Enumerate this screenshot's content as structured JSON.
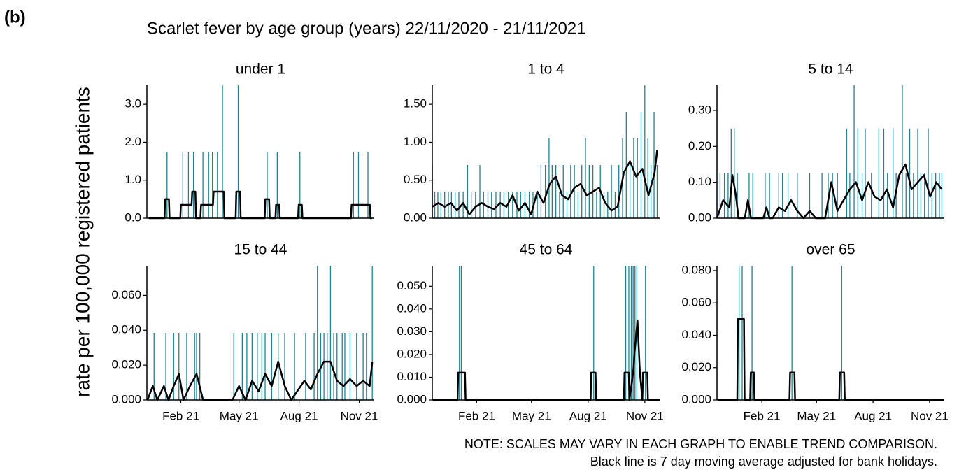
{
  "label": "(b)",
  "title": "Scarlet fever by age group (years) 22/11/2020 - 21/11/2021",
  "y_label": "rate per 100,000 registered patients",
  "notes": [
    "NOTE: SCALES MAY VARY IN EACH GRAPH TO ENABLE TREND COMPARISON.",
    "Black line is 7 day moving average adjusted for bank holidays."
  ],
  "chart_data": [
    {
      "type": "line",
      "title": "under 1",
      "xlim": [
        7,
        368
      ],
      "ylim": [
        0,
        3.5
      ],
      "yticks": [
        {
          "value": 0,
          "label": "0.0"
        },
        {
          "value": 1,
          "label": "1.0"
        },
        {
          "value": 2,
          "label": "2.0"
        },
        {
          "value": 3,
          "label": "3.0"
        }
      ],
      "series": [
        {
          "type": "spike",
          "color": "#1f8394",
          "x": [
            39,
            64,
            73,
            81,
            96,
            105,
            111,
            119,
            127,
            152,
            198,
            214,
            250,
            335,
            343,
            358
          ],
          "values": [
            1.75,
            1.75,
            1.75,
            1.75,
            1.75,
            1.75,
            1.75,
            1.75,
            3.5,
            3.5,
            1.75,
            1.75,
            1.75,
            1.75,
            1.75,
            1.75
          ]
        },
        {
          "type": "line",
          "color": "#000000",
          "x": [
            10,
            35,
            36,
            42,
            43,
            60,
            61,
            78,
            79,
            84,
            85,
            92,
            93,
            112,
            113,
            119,
            120,
            129,
            130,
            148,
            149,
            155,
            156,
            194,
            195,
            201,
            202,
            211,
            212,
            217,
            218,
            247,
            248,
            253,
            254,
            331,
            332,
            361,
            362,
            364
          ],
          "values": [
            0,
            0,
            0.5,
            0.5,
            0,
            0,
            0.35,
            0.35,
            0.7,
            0.7,
            0,
            0,
            0.35,
            0.35,
            0.7,
            0.7,
            0.7,
            0.7,
            0,
            0,
            0.7,
            0.7,
            0,
            0,
            0.5,
            0.5,
            0,
            0,
            0.35,
            0.35,
            0,
            0,
            0.35,
            0.35,
            0,
            0,
            0.35,
            0.35,
            0,
            0
          ]
        }
      ]
    },
    {
      "type": "line",
      "title": "1 to 4",
      "xlim": [
        0,
        368
      ],
      "ylim": [
        0,
        1.75
      ],
      "yticks": [
        {
          "value": 0,
          "label": "0.00"
        },
        {
          "value": 0.5,
          "label": "0.50"
        },
        {
          "value": 1,
          "label": "1.00"
        },
        {
          "value": 1.5,
          "label": "1.50"
        }
      ],
      "series": [
        {
          "type": "spike",
          "color": "#1f8394",
          "x": [
            0,
            4,
            9,
            14,
            20,
            26,
            31,
            37,
            43,
            50,
            57,
            63,
            70,
            77,
            83,
            90,
            96,
            103,
            110,
            116,
            123,
            130,
            137,
            143,
            150,
            157,
            163,
            170,
            176,
            183,
            189,
            194,
            200,
            206,
            212,
            218,
            224,
            230,
            236,
            242,
            248,
            254,
            260,
            266,
            272,
            278,
            284,
            290,
            296,
            302,
            308,
            314,
            320,
            326,
            332,
            338,
            344,
            349,
            354,
            359,
            364
          ],
          "values": [
            0.7,
            0.35,
            0.35,
            0.35,
            0.35,
            0.35,
            0.35,
            0.35,
            0.35,
            0.35,
            0.7,
            0.35,
            0.35,
            0.7,
            0.35,
            0.35,
            0.35,
            0.35,
            0.35,
            0.35,
            0.35,
            0.35,
            0.35,
            0.35,
            0.35,
            0.35,
            0.35,
            0.35,
            0.7,
            0.7,
            1.05,
            0.7,
            0.7,
            0.35,
            0.7,
            0.35,
            0.7,
            0.7,
            0.35,
            0.7,
            1.05,
            0.7,
            0.7,
            0.35,
            0.7,
            0.35,
            0.35,
            0.7,
            0.35,
            0.7,
            1.05,
            1.4,
            0.7,
            1.05,
            1.05,
            1.4,
            1.75,
            1.05,
            0.7,
            1.4,
            0.7
          ]
        },
        {
          "type": "line",
          "color": "#000000",
          "x": [
            0,
            10,
            20,
            30,
            40,
            50,
            60,
            70,
            80,
            90,
            100,
            110,
            120,
            130,
            140,
            150,
            160,
            170,
            180,
            190,
            200,
            210,
            220,
            230,
            240,
            250,
            260,
            270,
            280,
            290,
            300,
            310,
            320,
            330,
            340,
            350,
            360,
            364
          ],
          "values": [
            0.15,
            0.2,
            0.15,
            0.2,
            0.1,
            0.2,
            0.05,
            0.15,
            0.2,
            0.15,
            0.12,
            0.2,
            0.15,
            0.3,
            0.1,
            0.2,
            0.05,
            0.35,
            0.2,
            0.45,
            0.55,
            0.3,
            0.25,
            0.4,
            0.45,
            0.3,
            0.35,
            0.4,
            0.2,
            0.1,
            0.15,
            0.6,
            0.75,
            0.55,
            0.65,
            0.3,
            0.6,
            0.9
          ]
        }
      ]
    },
    {
      "type": "line",
      "title": "5 to 14",
      "xlim": [
        0,
        368
      ],
      "ylim": [
        0,
        0.37
      ],
      "yticks": [
        {
          "value": 0,
          "label": "0.00"
        },
        {
          "value": 0.1,
          "label": "0.10"
        },
        {
          "value": 0.2,
          "label": "0.20"
        },
        {
          "value": 0.3,
          "label": "0.30"
        }
      ],
      "series": [
        {
          "type": "spike",
          "color": "#1f8394",
          "x": [
            5,
            12,
            18,
            23,
            28,
            33,
            52,
            58,
            78,
            85,
            100,
            106,
            115,
            130,
            150,
            170,
            180,
            187,
            195,
            210,
            215,
            222,
            228,
            235,
            240,
            250,
            262,
            270,
            276,
            285,
            290,
            300,
            306,
            312,
            318,
            325,
            330,
            336,
            342,
            348,
            354,
            360,
            364
          ],
          "values": [
            0.125,
            0.125,
            0.125,
            0.25,
            0.25,
            0.125,
            0.125,
            0.125,
            0.125,
            0.125,
            0.125,
            0.125,
            0.125,
            0.125,
            0.125,
            0.125,
            0.125,
            0.125,
            0.125,
            0.25,
            0.125,
            0.37,
            0.25,
            0.125,
            0.25,
            0.125,
            0.25,
            0.25,
            0.125,
            0.25,
            0.125,
            0.37,
            0.125,
            0.25,
            0.125,
            0.25,
            0.125,
            0.125,
            0.25,
            0.125,
            0.125,
            0.125,
            0.125
          ]
        },
        {
          "type": "line",
          "color": "#000000",
          "x": [
            0,
            10,
            20,
            25,
            30,
            35,
            40,
            45,
            50,
            55,
            60,
            75,
            80,
            85,
            90,
            100,
            110,
            120,
            130,
            140,
            150,
            160,
            175,
            185,
            195,
            205,
            215,
            225,
            235,
            245,
            255,
            265,
            275,
            285,
            295,
            305,
            315,
            325,
            335,
            345,
            355,
            364
          ],
          "values": [
            0,
            0.05,
            0.03,
            0.12,
            0.07,
            0,
            0,
            0,
            0.05,
            0,
            0,
            0,
            0.03,
            0,
            0,
            0.03,
            0.02,
            0.05,
            0.02,
            0,
            0.02,
            0,
            0,
            0.1,
            0.02,
            0.05,
            0.08,
            0.1,
            0.05,
            0.1,
            0.06,
            0.05,
            0.08,
            0.03,
            0.12,
            0.15,
            0.08,
            0.1,
            0.12,
            0.06,
            0.1,
            0.08
          ]
        }
      ]
    },
    {
      "type": "line",
      "title": "15 to 44",
      "xlim": [
        19,
        367
      ],
      "ylim": [
        0,
        0.077
      ],
      "xticks": [
        {
          "value": 71,
          "label": "Feb 21"
        },
        {
          "value": 160,
          "label": "May 21"
        },
        {
          "value": 252,
          "label": "Aug 21"
        },
        {
          "value": 344,
          "label": "Nov 21"
        }
      ],
      "yticks": [
        {
          "value": 0,
          "label": "0.000"
        },
        {
          "value": 0.02,
          "label": "0.020"
        },
        {
          "value": 0.04,
          "label": "0.040"
        },
        {
          "value": 0.06,
          "label": "0.060"
        }
      ],
      "series": [
        {
          "type": "spike",
          "color": "#1f8394",
          "x": [
            30,
            48,
            60,
            68,
            80,
            92,
            95,
            100,
            152,
            165,
            172,
            180,
            188,
            195,
            200,
            210,
            220,
            230,
            245,
            262,
            275,
            280,
            285,
            290,
            295,
            300,
            305,
            310,
            318,
            322,
            330,
            340,
            350,
            355,
            364
          ],
          "values": [
            0.0385,
            0.0385,
            0.0385,
            0.0385,
            0.0385,
            0.0385,
            0.0385,
            0.0385,
            0.0385,
            0.0385,
            0.0385,
            0.0385,
            0.0385,
            0.0385,
            0.0385,
            0.0385,
            0.0385,
            0.0385,
            0.0385,
            0.0385,
            0.0385,
            0.077,
            0.0385,
            0.0385,
            0.0385,
            0.077,
            0.0385,
            0.0385,
            0.0385,
            0.0385,
            0.0385,
            0.0385,
            0.0385,
            0.0385,
            0.077
          ]
        },
        {
          "type": "line",
          "color": "#000000",
          "x": [
            20,
            28,
            35,
            45,
            52,
            60,
            68,
            75,
            85,
            95,
            105,
            150,
            160,
            170,
            180,
            190,
            200,
            210,
            220,
            230,
            240,
            260,
            270,
            280,
            290,
            300,
            310,
            320,
            330,
            340,
            350,
            360,
            364
          ],
          "values": [
            0,
            0.008,
            0,
            0.008,
            0,
            0.008,
            0.015,
            0,
            0.008,
            0.015,
            0,
            0,
            0.008,
            0,
            0.011,
            0.005,
            0.015,
            0.008,
            0.022,
            0.008,
            0,
            0.011,
            0.006,
            0.015,
            0.022,
            0.022,
            0.011,
            0.008,
            0.012,
            0.008,
            0.011,
            0.008,
            0.022
          ]
        }
      ]
    },
    {
      "type": "line",
      "title": "45 to 64",
      "xlim": [
        -1,
        368
      ],
      "ylim": [
        0,
        0.059
      ],
      "xticks": [
        {
          "value": 71,
          "label": "Feb 21"
        },
        {
          "value": 160,
          "label": "May 21"
        },
        {
          "value": 252,
          "label": "Aug 21"
        },
        {
          "value": 344,
          "label": "Nov 21"
        }
      ],
      "yticks": [
        {
          "value": 0,
          "label": "0.000"
        },
        {
          "value": 0.01,
          "label": "0.010"
        },
        {
          "value": 0.02,
          "label": "0.020"
        },
        {
          "value": 0.03,
          "label": "0.030"
        },
        {
          "value": 0.04,
          "label": "0.040"
        },
        {
          "value": 0.05,
          "label": "0.050"
        }
      ],
      "series": [
        {
          "type": "spike",
          "color": "#1f8394",
          "x": [
            43,
            46,
            261,
            313,
            318,
            322,
            325,
            328,
            331,
            345
          ],
          "values": [
            0.059,
            0.059,
            0.059,
            0.059,
            0.059,
            0.059,
            0.059,
            0.059,
            0.059,
            0.059
          ]
        },
        {
          "type": "line",
          "color": "#000000",
          "x": [
            0,
            40,
            41,
            52,
            53,
            256,
            257,
            264,
            265,
            310,
            311,
            318,
            319,
            325,
            328,
            332,
            336,
            340,
            341,
            348,
            349,
            368
          ],
          "values": [
            0,
            0,
            0.012,
            0.012,
            0,
            0,
            0.012,
            0.012,
            0,
            0,
            0.012,
            0.012,
            0,
            0.012,
            0.023,
            0.035,
            0.012,
            0,
            0.012,
            0.012,
            0,
            0
          ]
        }
      ]
    },
    {
      "type": "line",
      "title": "over 65",
      "xlim": [
        -2,
        368
      ],
      "ylim": [
        0,
        0.083
      ],
      "xticks": [
        {
          "value": 71,
          "label": "Feb 21"
        },
        {
          "value": 160,
          "label": "May 21"
        },
        {
          "value": 252,
          "label": "Aug 21"
        },
        {
          "value": 344,
          "label": "Nov 21"
        }
      ],
      "yticks": [
        {
          "value": 0,
          "label": "0.000"
        },
        {
          "value": 0.02,
          "label": "0.020"
        },
        {
          "value": 0.04,
          "label": "0.040"
        },
        {
          "value": 0.06,
          "label": "0.060"
        },
        {
          "value": 0.08,
          "label": "0.080"
        }
      ],
      "series": [
        {
          "type": "spike",
          "color": "#1f8394",
          "x": [
            34,
            39,
            55,
            120,
            201
          ],
          "values": [
            0.083,
            0.083,
            0.083,
            0.083,
            0.083
          ]
        },
        {
          "type": "line",
          "color": "#000000",
          "x": [
            0,
            31,
            32,
            42,
            43,
            52,
            53,
            58,
            59,
            116,
            117,
            124,
            125,
            197,
            198,
            205,
            206,
            368
          ],
          "values": [
            0,
            0,
            0.05,
            0.05,
            0,
            0,
            0.017,
            0.017,
            0,
            0,
            0.017,
            0.017,
            0,
            0,
            0.017,
            0.017,
            0,
            0
          ]
        }
      ]
    }
  ]
}
